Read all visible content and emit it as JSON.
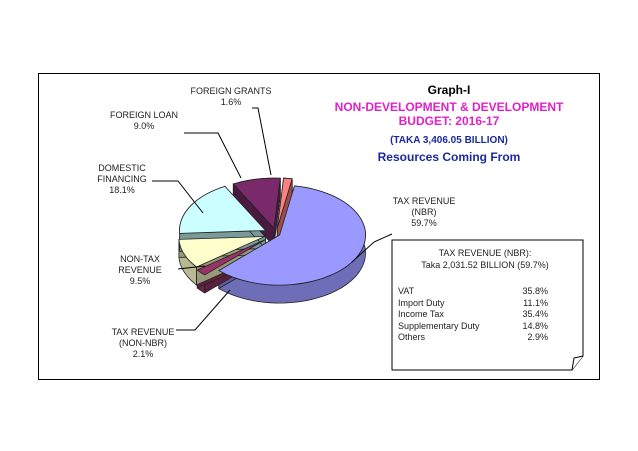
{
  "chart_data": {
    "type": "pie",
    "title": "Graph-I",
    "subtitle": "NON-DEVELOPMENT & DEVELOPMENT\nBUDGET: 2016-17",
    "total_label": "(TAKA 3,406.05 BILLION)",
    "heading": "Resources Coming From",
    "slices": [
      {
        "name": "TAX REVENUE\n(NBR)",
        "pct_label": "59.7%",
        "value": 59.7,
        "color": "#9999ff"
      },
      {
        "name": "TAX REVENUE\n(NON-NBR)",
        "pct_label": "2.1%",
        "value": 2.1,
        "color": "#993366"
      },
      {
        "name": "NON-TAX\nREVENUE",
        "pct_label": "9.5%",
        "value": 9.5,
        "color": "#ffffcc"
      },
      {
        "name": "DOMESTIC\nFINANCING",
        "pct_label": "18.1%",
        "value": 18.1,
        "color": "#ccffff"
      },
      {
        "name": "FOREIGN LOAN",
        "pct_label": "9.0%",
        "value": 9.0,
        "color": "#7a2a6a"
      },
      {
        "name": "FOREIGN GRANTS",
        "pct_label": "1.6%",
        "value": 1.6,
        "color": "#ff8080"
      }
    ]
  },
  "note": {
    "heading_line1": "TAX REVENUE (NBR):",
    "heading_line2": "Taka 2,031.52 BILLION (59.7%)",
    "rows": [
      {
        "label": "VAT",
        "value": "35.8%"
      },
      {
        "label": "Import Duty",
        "value": "11.1%"
      },
      {
        "label": "Income Tax",
        "value": "35.4%"
      },
      {
        "label": "Supplementary Duty",
        "value": "14.8%"
      },
      {
        "label": "Others",
        "value": "2.9%"
      }
    ]
  }
}
